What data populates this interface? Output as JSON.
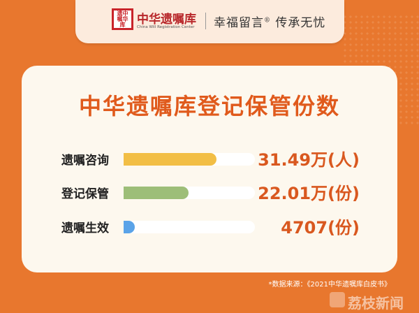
{
  "header": {
    "logo_seal": "遗嘱库中华",
    "brand": "中华遗嘱库",
    "brand_en": "China Will Registration Center",
    "slogan": "幸福留言",
    "slogan_mark": "®",
    "slogan2": "传承无忧"
  },
  "chart_data": {
    "type": "bar",
    "orientation": "horizontal",
    "title": "中华遗嘱库登记保管份数",
    "categories": [
      "遗嘱咨询",
      "登记保管",
      "遗嘱生效"
    ],
    "values": [
      314900,
      220100,
      4707
    ],
    "value_labels": [
      "31.49万(人)",
      "22.01万(份)",
      "4707(份)"
    ],
    "colors": [
      "#F2BE45",
      "#9DBE78",
      "#5AA3E8"
    ],
    "grid": false
  },
  "source": "*数据来源：《2021中华遗嘱库白皮书》",
  "watermark": "荔枝新闻"
}
